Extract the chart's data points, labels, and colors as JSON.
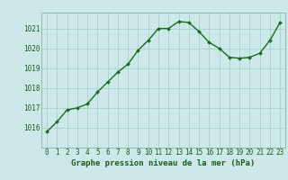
{
  "x": [
    0,
    1,
    2,
    3,
    4,
    5,
    6,
    7,
    8,
    9,
    10,
    11,
    12,
    13,
    14,
    15,
    16,
    17,
    18,
    19,
    20,
    21,
    22,
    23
  ],
  "y": [
    1015.8,
    1016.3,
    1016.9,
    1017.0,
    1017.2,
    1017.8,
    1018.3,
    1018.8,
    1019.2,
    1019.9,
    1020.4,
    1021.0,
    1021.0,
    1021.35,
    1021.3,
    1020.85,
    1020.3,
    1020.0,
    1019.55,
    1019.5,
    1019.55,
    1019.75,
    1020.4,
    1021.3
  ],
  "line_color": "#1a6b1a",
  "marker": "D",
  "marker_size": 2.0,
  "linewidth": 1.0,
  "bg_color": "#cce8e8",
  "grid_color": "#aacfcf",
  "xlabel": "Graphe pression niveau de la mer (hPa)",
  "xlabel_fontsize": 6.5,
  "xlabel_color": "#1a5c1a",
  "tick_label_color": "#1a5c1a",
  "tick_fontsize": 5.5,
  "ylim": [
    1015.0,
    1021.8
  ],
  "yticks": [
    1016,
    1017,
    1018,
    1019,
    1020,
    1021
  ],
  "xlim": [
    -0.5,
    23.5
  ],
  "xticks": [
    0,
    1,
    2,
    3,
    4,
    5,
    6,
    7,
    8,
    9,
    10,
    11,
    12,
    13,
    14,
    15,
    16,
    17,
    18,
    19,
    20,
    21,
    22,
    23
  ]
}
